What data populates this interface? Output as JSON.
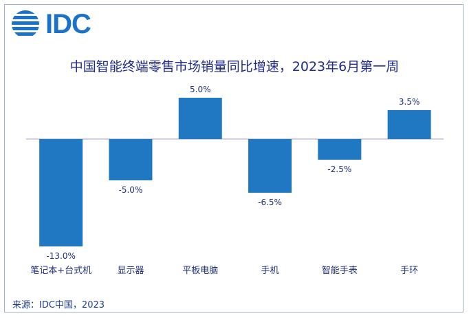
{
  "logo": {
    "text": "IDC"
  },
  "chart_data": {
    "type": "bar",
    "title": "中国智能终端零售市场销量同比增速，2023年6月第一周",
    "categories": [
      "笔记本+台式机",
      "显示器",
      "平板电脑",
      "手机",
      "智能手表",
      "手环"
    ],
    "values": [
      -13.0,
      -5.0,
      5.0,
      -6.5,
      -2.5,
      3.5
    ],
    "data_labels": [
      "-13.0%",
      "-5.0%",
      "5.0%",
      "-6.5%",
      "-2.5%",
      "3.5%"
    ],
    "xlabel": "",
    "ylabel": "",
    "ylim": [
      -13.0,
      5.0
    ],
    "grid": false,
    "legend": "none",
    "bar_color": "#1f78c1",
    "axis_color": "#b9b2dc"
  },
  "source": "来源：IDC中国，2023"
}
